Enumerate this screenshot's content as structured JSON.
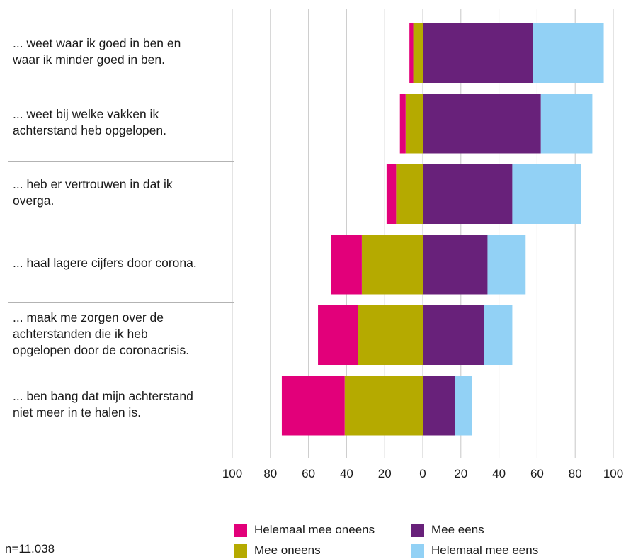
{
  "chart_data": {
    "type": "bar",
    "orientation": "horizontal-diverging",
    "categories": [
      "... weet waar ik goed in ben en\nwaar ik minder goed in ben.",
      "... weet bij welke vakken ik\nachterstand heb opgelopen.",
      "... heb er vertrouwen in dat ik\noverga.",
      "... haal lagere cijfers door corona.",
      "... maak me zorgen over de\nachterstanden die ik heb\nopgelopen door de coronacrisis.",
      "... ben bang dat mijn achterstand\nniet meer in te halen is."
    ],
    "series": [
      {
        "name": "Helemaal mee oneens",
        "side": "negative",
        "color": "#e2007a",
        "values": [
          2,
          3,
          5,
          16,
          21,
          33
        ]
      },
      {
        "name": "Mee oneens",
        "side": "negative",
        "color": "#b5aa00",
        "values": [
          5,
          9,
          14,
          32,
          34,
          41
        ]
      },
      {
        "name": "Mee eens",
        "side": "positive",
        "color": "#68217a",
        "values": [
          58,
          62,
          47,
          34,
          32,
          17
        ]
      },
      {
        "name": "Helemaal mee eens",
        "side": "positive",
        "color": "#92d1f5",
        "values": [
          37,
          27,
          36,
          20,
          15,
          9
        ]
      }
    ],
    "xlim": [
      -100,
      100
    ],
    "tick_values": [
      -100,
      -80,
      -60,
      -40,
      -20,
      0,
      20,
      40,
      60,
      80,
      100
    ],
    "tick_labels": [
      "100",
      "80",
      "60",
      "40",
      "20",
      "0",
      "20",
      "40",
      "60",
      "80",
      "100"
    ],
    "legend": [
      {
        "label": "Helemaal mee oneens",
        "color": "#e2007a"
      },
      {
        "label": "Mee eens",
        "color": "#68217a"
      },
      {
        "label": "Mee oneens",
        "color": "#b5aa00"
      },
      {
        "label": "Helemaal mee eens",
        "color": "#92d1f5"
      }
    ],
    "legend_position": "bottom",
    "grid": true,
    "sample_note": "n=11.038"
  }
}
